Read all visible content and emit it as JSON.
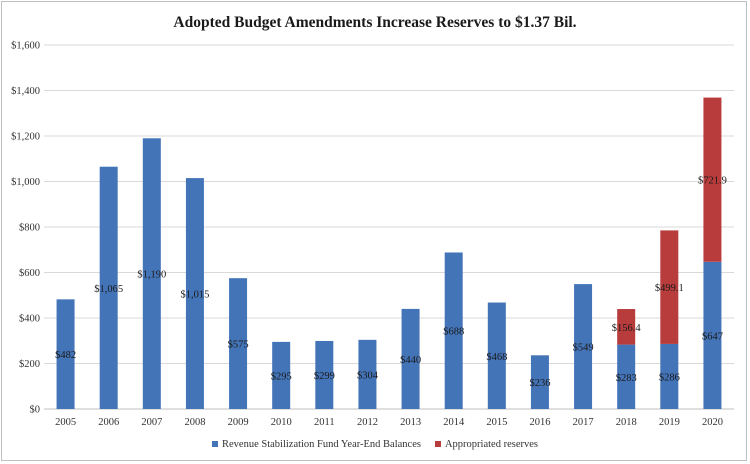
{
  "chart_data": {
    "type": "bar",
    "stacked": true,
    "title": "Adopted Budget Amendments Increase Reserves to $1.37 Bil.",
    "xlabel": "",
    "ylabel": "",
    "ylim": [
      0,
      1600
    ],
    "yticks": [
      0,
      200,
      400,
      600,
      800,
      1000,
      1200,
      1400,
      1600
    ],
    "ytick_labels": [
      "$0",
      "$200",
      "$400",
      "$600",
      "$800",
      "$1,000",
      "$1,200",
      "$1,400",
      "$1,600"
    ],
    "grid": true,
    "legend_position": "bottom",
    "categories": [
      "2005",
      "2006",
      "2007",
      "2008",
      "2009",
      "2010",
      "2011",
      "2012",
      "2013",
      "2014",
      "2015",
      "2016",
      "2017",
      "2018",
      "2019",
      "2020"
    ],
    "series": [
      {
        "name": "Revenue Stabilization Fund Year-End Balances",
        "color": "#4474b8",
        "values": [
          482,
          1065,
          1190,
          1015,
          575,
          295,
          299,
          304,
          440,
          688,
          468,
          236,
          549,
          283,
          286,
          647
        ],
        "labels": [
          "$482",
          "$1,065",
          "$1,190",
          "$1,015",
          "$575",
          "$295",
          "$299",
          "$304",
          "$440",
          "$688",
          "$468",
          "$236",
          "$549",
          "$283",
          "$286",
          "$647"
        ]
      },
      {
        "name": "Appropriated reserves",
        "color": "#b83c3c",
        "values": [
          null,
          null,
          null,
          null,
          null,
          null,
          null,
          null,
          null,
          null,
          null,
          null,
          null,
          156.4,
          499.1,
          721.9
        ],
        "labels": [
          "",
          "",
          "",
          "",
          "",
          "",
          "",
          "",
          "",
          "",
          "",
          "",
          "",
          "$156.4",
          "$499.1",
          "$721.9"
        ]
      }
    ]
  }
}
